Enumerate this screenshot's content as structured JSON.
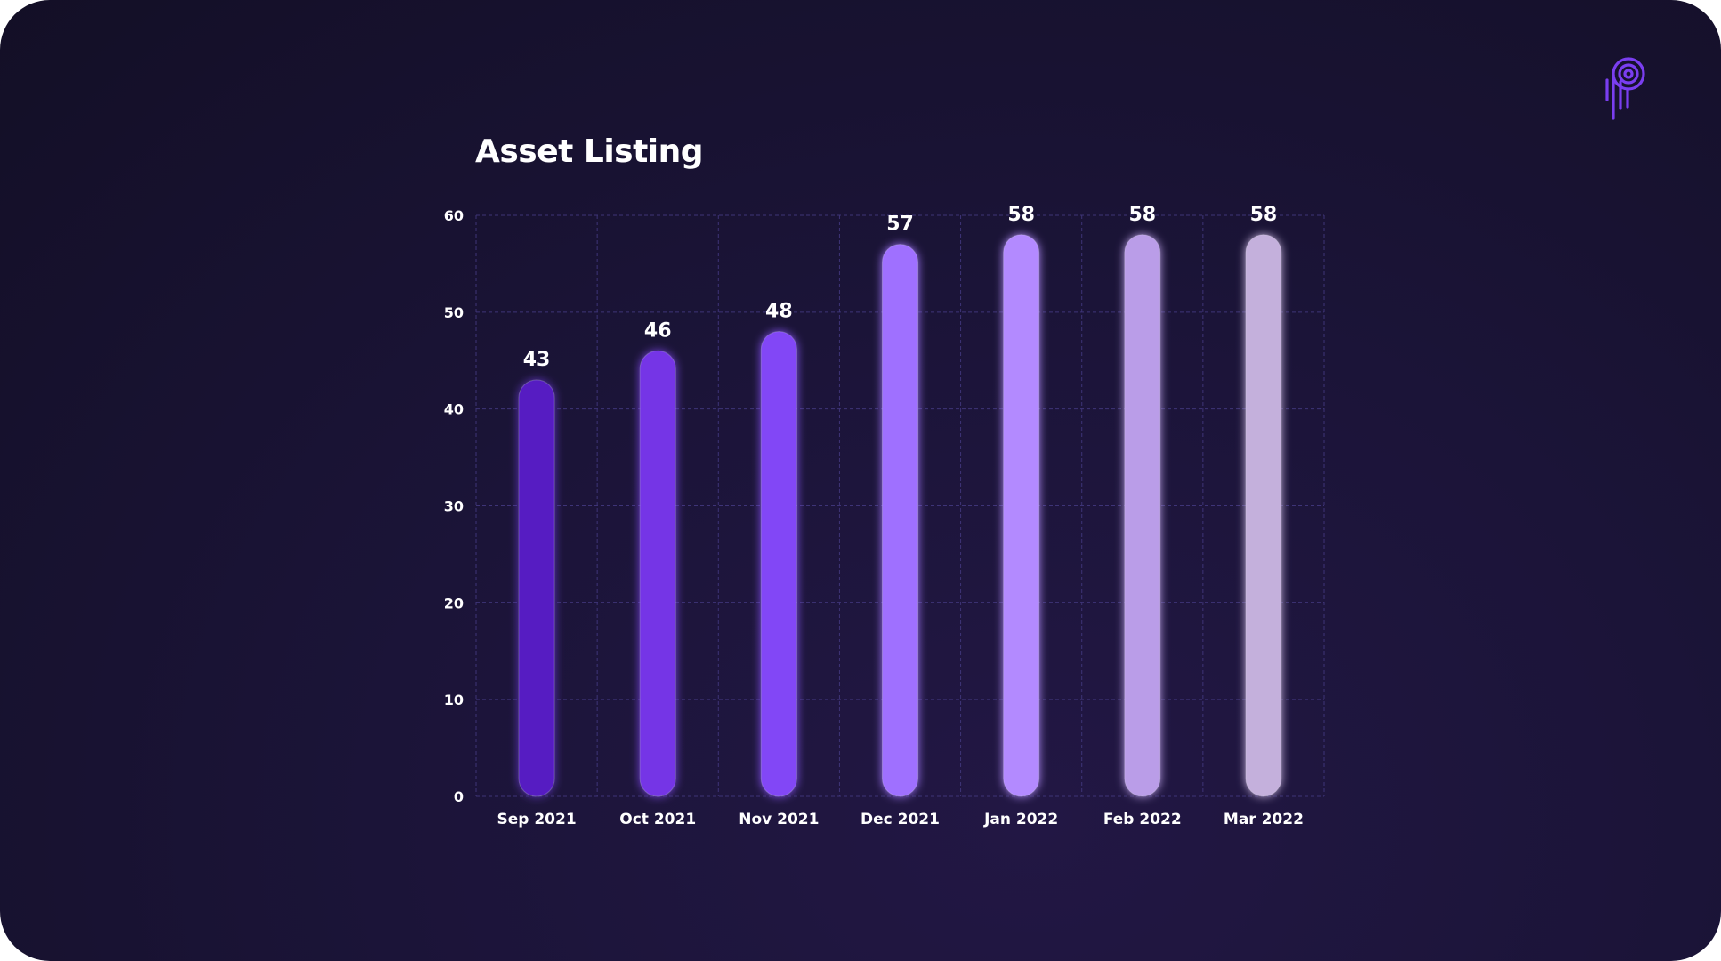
{
  "chart_data": {
    "type": "bar",
    "title": "Asset Listing",
    "xlabel": "",
    "ylabel": "",
    "categories": [
      "Sep 2021",
      "Oct 2021",
      "Nov 2021",
      "Dec 2021",
      "Jan 2022",
      "Feb 2022",
      "Mar 2022"
    ],
    "values": [
      43,
      46,
      48,
      57,
      58,
      58,
      58
    ],
    "data_labels": [
      "43",
      "46",
      "48",
      "57",
      "58",
      "58",
      "58"
    ],
    "yticks": [
      0,
      10,
      20,
      30,
      40,
      50,
      60
    ],
    "ylim": [
      0,
      60
    ],
    "grid": true,
    "legend": "none",
    "bar_colors": [
      "#561FC2",
      "#7436E6",
      "#8247F6",
      "#9F70FF",
      "#B38AFF",
      "#BA9DE8",
      "#C4B0DC"
    ]
  },
  "colors": {
    "background": "#1B1438",
    "grid": "#3E3477",
    "logo": "#7A3EF0",
    "text": "#FFFFFF"
  },
  "logo": {
    "icon": "brand-logo-icon"
  }
}
